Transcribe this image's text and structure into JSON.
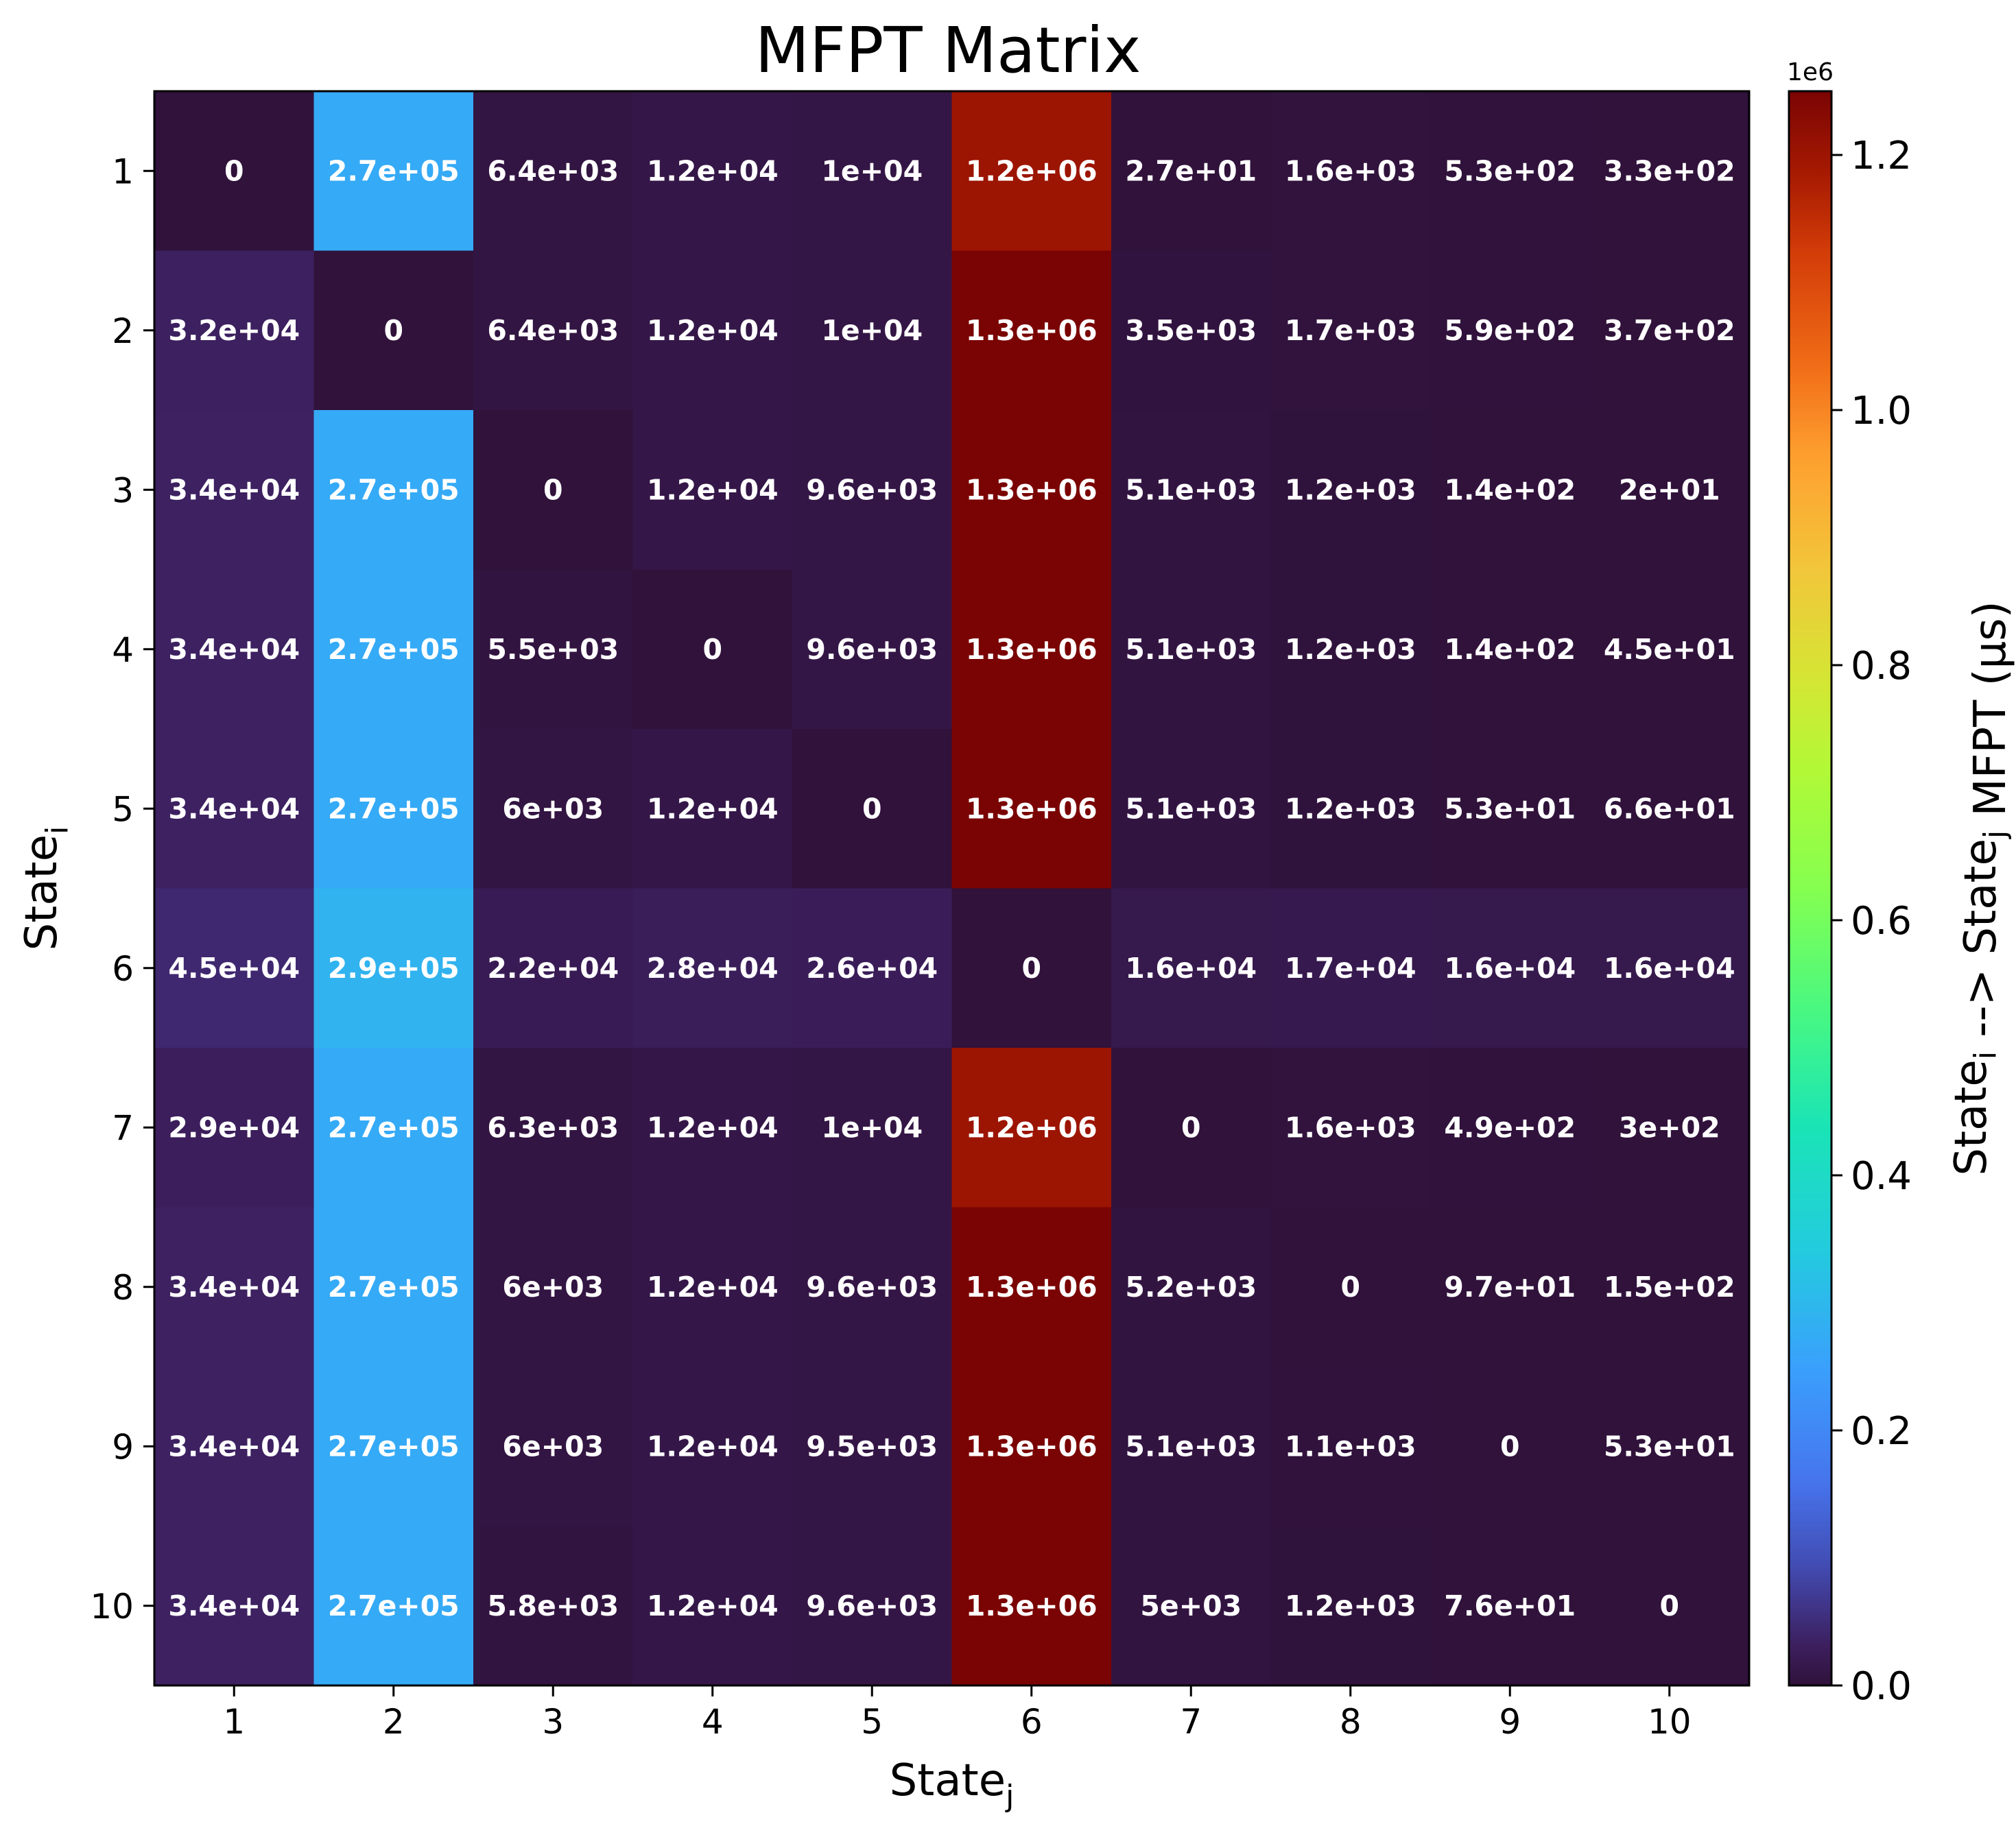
{
  "chart_data": {
    "type": "heatmap",
    "title": "MFPT Matrix",
    "xlabel": {
      "base": "State",
      "sub": "j"
    },
    "ylabel": {
      "base": "State",
      "sub": "i"
    },
    "x_tick_labels": [
      "1",
      "2",
      "3",
      "4",
      "5",
      "6",
      "7",
      "8",
      "9",
      "10"
    ],
    "y_tick_labels": [
      "1",
      "2",
      "3",
      "4",
      "5",
      "6",
      "7",
      "8",
      "9",
      "10"
    ],
    "colormap": "turbo",
    "colorbar": {
      "label_parts": [
        {
          "text": "State",
          "sub": ""
        },
        {
          "text": "",
          "sub": "i"
        },
        {
          "text": " --> State",
          "sub": ""
        },
        {
          "text": "",
          "sub": "j"
        },
        {
          "text": " MFPT (μs)",
          "sub": ""
        }
      ],
      "multiplier_label": "1e6",
      "range": [
        0,
        1.25
      ],
      "ticks": [
        0.0,
        0.2,
        0.4,
        0.6,
        0.8,
        1.0,
        1.2
      ],
      "tick_labels": [
        "0.0",
        "0.2",
        "0.4",
        "0.6",
        "0.8",
        "1.0",
        "1.2"
      ]
    },
    "value_scale": 1000000,
    "values": [
      [
        0,
        270000,
        6400,
        12000,
        10000,
        1200000,
        27,
        1600,
        530,
        330
      ],
      [
        32000,
        0,
        6400,
        12000,
        10000,
        1300000,
        3500,
        1700,
        590,
        370
      ],
      [
        34000,
        270000,
        0,
        12000,
        9600,
        1300000,
        5100,
        1200,
        140,
        20
      ],
      [
        34000,
        270000,
        5500,
        0,
        9600,
        1300000,
        5100,
        1200,
        140,
        45
      ],
      [
        34000,
        270000,
        6000,
        12000,
        0,
        1300000,
        5100,
        1200,
        53,
        66
      ],
      [
        45000,
        290000,
        22000,
        28000,
        26000,
        0,
        16000,
        17000,
        16000,
        16000
      ],
      [
        29000,
        270000,
        6300,
        12000,
        10000,
        1200000,
        0,
        1600,
        490,
        300
      ],
      [
        34000,
        270000,
        6000,
        12000,
        9600,
        1300000,
        5200,
        0,
        97,
        150
      ],
      [
        34000,
        270000,
        6000,
        12000,
        9500,
        1300000,
        5100,
        1100,
        0,
        53
      ],
      [
        34000,
        270000,
        5800,
        12000,
        9600,
        1300000,
        5000,
        1200,
        76,
        0
      ]
    ],
    "value_labels": [
      [
        "0",
        "2.7e+05",
        "6.4e+03",
        "1.2e+04",
        "1e+04",
        "1.2e+06",
        "2.7e+01",
        "1.6e+03",
        "5.3e+02",
        "3.3e+02"
      ],
      [
        "3.2e+04",
        "0",
        "6.4e+03",
        "1.2e+04",
        "1e+04",
        "1.3e+06",
        "3.5e+03",
        "1.7e+03",
        "5.9e+02",
        "3.7e+02"
      ],
      [
        "3.4e+04",
        "2.7e+05",
        "0",
        "1.2e+04",
        "9.6e+03",
        "1.3e+06",
        "5.1e+03",
        "1.2e+03",
        "1.4e+02",
        "2e+01"
      ],
      [
        "3.4e+04",
        "2.7e+05",
        "5.5e+03",
        "0",
        "9.6e+03",
        "1.3e+06",
        "5.1e+03",
        "1.2e+03",
        "1.4e+02",
        "4.5e+01"
      ],
      [
        "3.4e+04",
        "2.7e+05",
        "6e+03",
        "1.2e+04",
        "0",
        "1.3e+06",
        "5.1e+03",
        "1.2e+03",
        "5.3e+01",
        "6.6e+01"
      ],
      [
        "4.5e+04",
        "2.9e+05",
        "2.2e+04",
        "2.8e+04",
        "2.6e+04",
        "0",
        "1.6e+04",
        "1.7e+04",
        "1.6e+04",
        "1.6e+04"
      ],
      [
        "2.9e+04",
        "2.7e+05",
        "6.3e+03",
        "1.2e+04",
        "1e+04",
        "1.2e+06",
        "0",
        "1.6e+03",
        "4.9e+02",
        "3e+02"
      ],
      [
        "3.4e+04",
        "2.7e+05",
        "6e+03",
        "1.2e+04",
        "9.6e+03",
        "1.3e+06",
        "5.2e+03",
        "0",
        "9.7e+01",
        "1.5e+02"
      ],
      [
        "3.4e+04",
        "2.7e+05",
        "6e+03",
        "1.2e+04",
        "9.5e+03",
        "1.3e+06",
        "5.1e+03",
        "1.1e+03",
        "0",
        "5.3e+01"
      ],
      [
        "3.4e+04",
        "2.7e+05",
        "5.8e+03",
        "1.2e+04",
        "9.6e+03",
        "1.3e+06",
        "5e+03",
        "1.2e+03",
        "7.6e+01",
        "0"
      ]
    ]
  }
}
